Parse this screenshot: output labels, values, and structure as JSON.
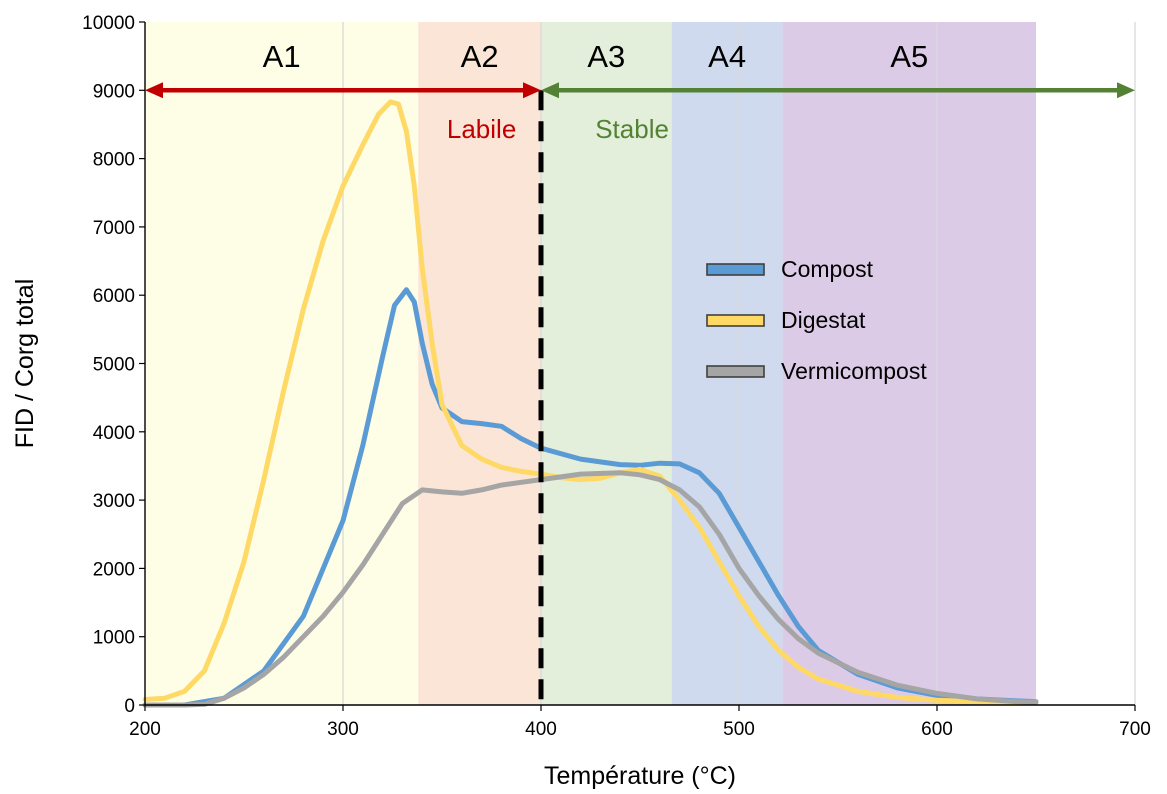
{
  "chart_data": {
    "type": "line",
    "xlabel": "Température (°C)",
    "ylabel": "FID / Corg total",
    "xlim": [
      200,
      700
    ],
    "ylim": [
      0,
      10000
    ],
    "x_ticks": [
      200,
      300,
      400,
      500,
      600,
      700
    ],
    "y_ticks": [
      0,
      1000,
      2000,
      3000,
      4000,
      5000,
      6000,
      7000,
      8000,
      9000,
      10000
    ],
    "grid": "vertical",
    "legend_position": "right",
    "zones": [
      {
        "label": "A1",
        "from": 200,
        "to": 338,
        "color": "#fefee6"
      },
      {
        "label": "A2",
        "from": 338,
        "to": 400,
        "color": "#fbe5d6"
      },
      {
        "label": "A3",
        "from": 400,
        "to": 466,
        "color": "#e3efdb"
      },
      {
        "label": "A4",
        "from": 466,
        "to": 522,
        "color": "#cfdaee"
      },
      {
        "label": "A5",
        "from": 522,
        "to": 650,
        "color": "#dccbe6"
      }
    ],
    "divider_x": 400,
    "ranges": [
      {
        "label": "Labile",
        "from": 200,
        "to": 400,
        "y": 9000,
        "color": "#c00000",
        "label_x": 370,
        "label_y": 8430
      },
      {
        "label": "Stable",
        "from": 400,
        "to": 700,
        "y": 9000,
        "color": "#548235",
        "label_x": 446,
        "label_y": 8430
      }
    ],
    "series": [
      {
        "name": "Compost",
        "color": "#5b9bd5",
        "points": [
          [
            200,
            0
          ],
          [
            220,
            0
          ],
          [
            240,
            100
          ],
          [
            260,
            500
          ],
          [
            280,
            1300
          ],
          [
            300,
            2700
          ],
          [
            310,
            3800
          ],
          [
            320,
            5100
          ],
          [
            326,
            5850
          ],
          [
            332,
            6080
          ],
          [
            336,
            5900
          ],
          [
            340,
            5300
          ],
          [
            345,
            4700
          ],
          [
            350,
            4350
          ],
          [
            360,
            4150
          ],
          [
            370,
            4120
          ],
          [
            380,
            4080
          ],
          [
            390,
            3900
          ],
          [
            400,
            3760
          ],
          [
            420,
            3600
          ],
          [
            440,
            3520
          ],
          [
            450,
            3510
          ],
          [
            460,
            3540
          ],
          [
            470,
            3530
          ],
          [
            480,
            3400
          ],
          [
            490,
            3100
          ],
          [
            500,
            2600
          ],
          [
            510,
            2100
          ],
          [
            520,
            1600
          ],
          [
            530,
            1150
          ],
          [
            540,
            800
          ],
          [
            560,
            450
          ],
          [
            580,
            250
          ],
          [
            600,
            140
          ],
          [
            620,
            90
          ],
          [
            640,
            60
          ],
          [
            650,
            50
          ]
        ]
      },
      {
        "name": "Digestat",
        "color": "#ffd966",
        "points": [
          [
            200,
            80
          ],
          [
            210,
            100
          ],
          [
            220,
            200
          ],
          [
            230,
            500
          ],
          [
            240,
            1200
          ],
          [
            250,
            2100
          ],
          [
            260,
            3300
          ],
          [
            270,
            4600
          ],
          [
            280,
            5800
          ],
          [
            290,
            6800
          ],
          [
            300,
            7600
          ],
          [
            310,
            8200
          ],
          [
            318,
            8650
          ],
          [
            324,
            8830
          ],
          [
            328,
            8800
          ],
          [
            332,
            8400
          ],
          [
            336,
            7600
          ],
          [
            340,
            6400
          ],
          [
            345,
            5300
          ],
          [
            350,
            4400
          ],
          [
            360,
            3800
          ],
          [
            370,
            3600
          ],
          [
            380,
            3480
          ],
          [
            390,
            3420
          ],
          [
            400,
            3380
          ],
          [
            410,
            3330
          ],
          [
            420,
            3300
          ],
          [
            430,
            3320
          ],
          [
            440,
            3400
          ],
          [
            450,
            3450
          ],
          [
            460,
            3350
          ],
          [
            470,
            3000
          ],
          [
            480,
            2600
          ],
          [
            490,
            2100
          ],
          [
            500,
            1600
          ],
          [
            510,
            1150
          ],
          [
            520,
            800
          ],
          [
            530,
            550
          ],
          [
            540,
            380
          ],
          [
            560,
            200
          ],
          [
            580,
            110
          ],
          [
            600,
            70
          ],
          [
            620,
            50
          ],
          [
            640,
            40
          ],
          [
            650,
            40
          ]
        ]
      },
      {
        "name": "Vermicompost",
        "color": "#a5a5a5",
        "points": [
          [
            200,
            0
          ],
          [
            220,
            0
          ],
          [
            230,
            10
          ],
          [
            240,
            100
          ],
          [
            250,
            250
          ],
          [
            260,
            450
          ],
          [
            270,
            700
          ],
          [
            280,
            1000
          ],
          [
            290,
            1300
          ],
          [
            300,
            1650
          ],
          [
            310,
            2050
          ],
          [
            320,
            2500
          ],
          [
            330,
            2950
          ],
          [
            340,
            3150
          ],
          [
            350,
            3120
          ],
          [
            360,
            3100
          ],
          [
            370,
            3150
          ],
          [
            380,
            3220
          ],
          [
            390,
            3260
          ],
          [
            400,
            3300
          ],
          [
            420,
            3380
          ],
          [
            440,
            3400
          ],
          [
            450,
            3370
          ],
          [
            460,
            3300
          ],
          [
            470,
            3150
          ],
          [
            480,
            2900
          ],
          [
            490,
            2500
          ],
          [
            500,
            2000
          ],
          [
            510,
            1600
          ],
          [
            520,
            1250
          ],
          [
            530,
            970
          ],
          [
            540,
            760
          ],
          [
            560,
            480
          ],
          [
            580,
            290
          ],
          [
            600,
            170
          ],
          [
            620,
            90
          ],
          [
            640,
            50
          ],
          [
            650,
            40
          ]
        ]
      }
    ]
  }
}
